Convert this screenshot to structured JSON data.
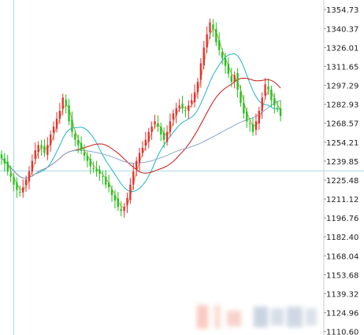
{
  "chart_data": {
    "type": "candlestick",
    "title": "",
    "xlabel": "",
    "ylabel": "",
    "ylim": [
      1108,
      1362
    ],
    "y_ticks": [
      {
        "value": 1354.73,
        "label": "1354.73"
      },
      {
        "value": 1340.37,
        "label": "1340.37"
      },
      {
        "value": 1326.01,
        "label": "1326.01"
      },
      {
        "value": 1311.65,
        "label": "1311.65"
      },
      {
        "value": 1297.29,
        "label": "1297.29"
      },
      {
        "value": 1282.93,
        "label": "1282.93"
      },
      {
        "value": 1268.57,
        "label": "1268.57"
      },
      {
        "value": 1254.21,
        "label": "1254.21"
      },
      {
        "value": 1239.85,
        "label": "1239.85"
      },
      {
        "value": 1225.48,
        "label": "1225.48"
      },
      {
        "value": 1211.12,
        "label": "1211.12"
      },
      {
        "value": 1196.76,
        "label": "1196.76"
      },
      {
        "value": 1182.4,
        "label": "1182.40"
      },
      {
        "value": 1168.04,
        "label": "1168.04"
      },
      {
        "value": 1153.68,
        "label": "1153.68"
      },
      {
        "value": 1139.32,
        "label": "1139.32"
      },
      {
        "value": 1124.96,
        "label": "1124.96"
      },
      {
        "value": 1110.6,
        "label": "1110.60"
      }
    ],
    "grid": false,
    "axis_side": "right",
    "reference_lines": [
      {
        "orientation": "horizontal",
        "value": 1232.5,
        "color": "#a8d8e0"
      },
      {
        "orientation": "vertical",
        "x_index": 4,
        "color": "#a8d8e0"
      }
    ],
    "candle_colors": {
      "up": "#e83030",
      "down": "#22c41a"
    },
    "close_series": [
      1242,
      1238,
      1232,
      1228,
      1222,
      1218,
      1216,
      1220,
      1226,
      1232,
      1240,
      1248,
      1252,
      1250,
      1246,
      1252,
      1260,
      1266,
      1272,
      1278,
      1288,
      1282,
      1270,
      1262,
      1256,
      1252,
      1248,
      1244,
      1240,
      1236,
      1234,
      1232,
      1230,
      1228,
      1222,
      1220,
      1214,
      1210,
      1205,
      1202,
      1205,
      1212,
      1222,
      1232,
      1240,
      1246,
      1250,
      1256,
      1262,
      1266,
      1270,
      1266,
      1260,
      1256,
      1262,
      1270,
      1276,
      1280,
      1282,
      1280,
      1278,
      1282,
      1286,
      1292,
      1300,
      1314,
      1326,
      1336,
      1345,
      1340,
      1330,
      1324,
      1318,
      1312,
      1306,
      1300,
      1305,
      1294,
      1284,
      1276,
      1270,
      1268,
      1262,
      1270,
      1278,
      1288,
      1298,
      1294,
      1286,
      1282,
      1280,
      1274
    ],
    "series": [
      {
        "color": "#c8a060",
        "smooth": 3
      },
      {
        "color": "#22b4c8",
        "smooth": 12
      },
      {
        "color": "#cc1414",
        "smooth": 24
      },
      {
        "color": "#8aa8c8",
        "smooth": 48
      }
    ]
  }
}
